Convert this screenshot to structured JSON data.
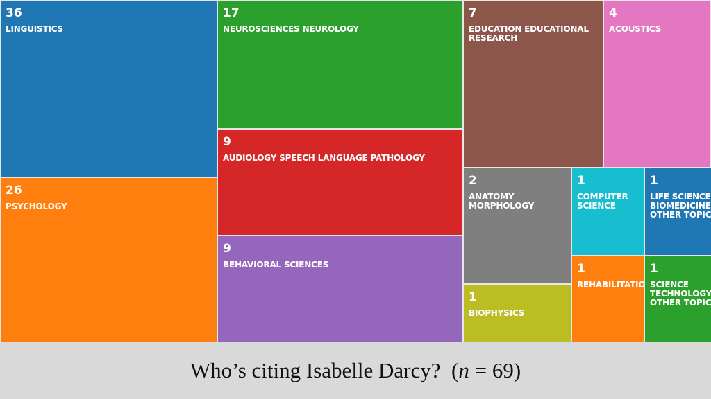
{
  "chart_data": {
    "type": "treemap",
    "total": 69,
    "items": [
      {
        "value": 36,
        "label": "LINGUISTICS",
        "color": "#1f77b4"
      },
      {
        "value": 26,
        "label": "PSYCHOLOGY",
        "color": "#ff7f0e"
      },
      {
        "value": 17,
        "label": "NEUROSCIENCES NEUROLOGY",
        "color": "#2ca02c"
      },
      {
        "value": 9,
        "label": "AUDIOLOGY SPEECH LANGUAGE PATHOLOGY",
        "color": "#d62728"
      },
      {
        "value": 9,
        "label": "BEHAVIORAL SCIENCES",
        "color": "#9467bd"
      },
      {
        "value": 7,
        "label": "EDUCATION EDUCATIONAL RESEARCH",
        "color": "#8c564b"
      },
      {
        "value": 4,
        "label": "ACOUSTICS",
        "color": "#e377c2"
      },
      {
        "value": 2,
        "label": "ANATOMY MORPHOLOGY",
        "color": "#7f7f7f"
      },
      {
        "value": 1,
        "label": "BIOPHYSICS",
        "color": "#bcbd22"
      },
      {
        "value": 1,
        "label": "COMPUTER SCIENCE",
        "color": "#17becf"
      },
      {
        "value": 1,
        "label": "REHABILITATION",
        "color": "#ff7f0e"
      },
      {
        "value": 1,
        "label": "LIFE SCIENCES BIOMEDICINE OTHER TOPICS",
        "color": "#1f77b4"
      },
      {
        "value": 1,
        "label": "SCIENCE TECHNOLOGY OTHER TOPICS",
        "color": "#2ca02c"
      }
    ]
  },
  "caption": {
    "prefix": "Who’s citing Isabelle Darcy?  (",
    "n_symbol": "n",
    "suffix": " = 69)"
  }
}
